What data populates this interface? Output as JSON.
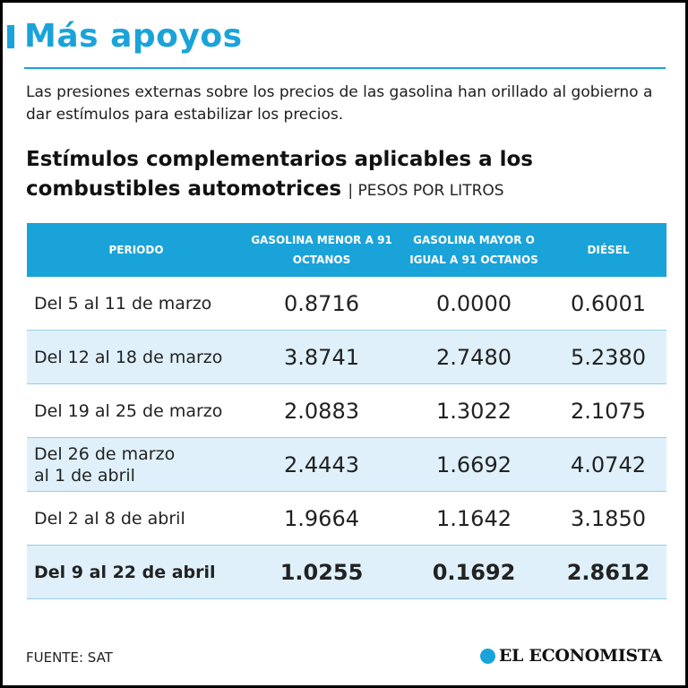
{
  "title": "Más apoyos",
  "intro": "Las presiones externas sobre los precios de las gasolina han orillado al gobierno a dar estímulos para estabilizar los precios.",
  "subtitle": {
    "main": "Estímulos complementarios aplicables a los combustibles automotrices",
    "unit": "| PESOS POR LITROS"
  },
  "colors": {
    "accent": "#1aa3d9",
    "shade": "#dff0fa"
  },
  "chart_data": {
    "type": "table",
    "title": "Estímulos complementarios aplicables a los combustibles automotrices",
    "units": "PESOS POR LITROS",
    "columns": [
      "PERIODO",
      "GASOLINA MENOR A 91 OCTANOS",
      "GASOLINA MAYOR O IGUAL A 91 OCTANOS",
      "DIÉSEL"
    ],
    "rows": [
      {
        "period": "Del 5 al 11 de marzo",
        "menor91": "0.8716",
        "mayor91": "0.0000",
        "diesel": "0.6001"
      },
      {
        "period": "Del 12 al 18 de marzo",
        "menor91": "3.8741",
        "mayor91": "2.7480",
        "diesel": "5.2380"
      },
      {
        "period": "Del 19 al 25 de marzo",
        "menor91": "2.0883",
        "mayor91": "1.3022",
        "diesel": "2.1075"
      },
      {
        "period": "Del 26 de marzo al 1 de abril",
        "menor91": "2.4443",
        "mayor91": "1.6692",
        "diesel": "4.0742"
      },
      {
        "period": "Del 2 al 8 de abril",
        "menor91": "1.9664",
        "mayor91": "1.1642",
        "diesel": "3.1850"
      },
      {
        "period": "Del 9 al 22 de abril",
        "menor91": "1.0255",
        "mayor91": "0.1692",
        "diesel": "2.8612"
      }
    ]
  },
  "source": "FUENTE: SAT",
  "logo": {
    "name": "EL ECONOMISTA",
    "icon": "economista-logo-icon"
  }
}
